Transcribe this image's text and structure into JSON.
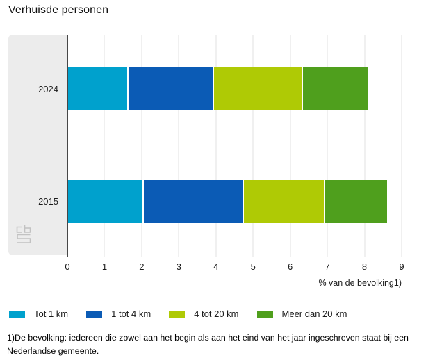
{
  "title": "Verhuisde personen",
  "chart_data": {
    "type": "bar",
    "orientation": "horizontal",
    "stacked": true,
    "title": "Verhuisde personen",
    "categories": [
      "2024",
      "2015"
    ],
    "series": [
      {
        "name": "Tot 1 km",
        "color": "#00a1cd",
        "values": [
          1.6,
          2.0
        ]
      },
      {
        "name": "1 tot 4 km",
        "color": "#0b5bb5",
        "values": [
          2.3,
          2.7
        ]
      },
      {
        "name": "4 tot 20 km",
        "color": "#afca05",
        "values": [
          2.4,
          2.2
        ]
      },
      {
        "name": "Meer dan 20 km",
        "color": "#4f9f1d",
        "values": [
          1.8,
          1.7
        ]
      }
    ],
    "totals": [
      8.1,
      8.6
    ],
    "xlabel": "% van de bevolking1)",
    "xlim": [
      0,
      9
    ],
    "xticks": [
      0,
      1,
      2,
      3,
      4,
      5,
      6,
      7,
      8,
      9
    ],
    "grid": true,
    "legend_position": "bottom"
  },
  "footnote": "1)De bevolking: iedereen die zowel aan het begin als aan het eind van het jaar ingeschreven staat bij een Nederlandse gemeente.",
  "branding": {
    "logo": "cbs-logo"
  }
}
